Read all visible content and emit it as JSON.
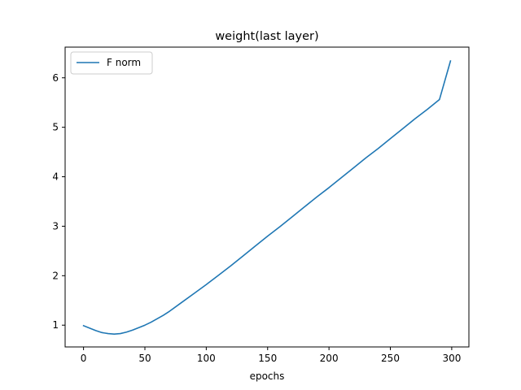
{
  "chart_data": {
    "type": "line",
    "title": "weight(last layer)",
    "xlabel": "epochs",
    "ylabel": "",
    "xlim": [
      -15,
      314
    ],
    "ylim": [
      0.56,
      6.62
    ],
    "xticks": [
      0,
      50,
      100,
      150,
      200,
      250,
      300
    ],
    "yticks": [
      1,
      2,
      3,
      4,
      5,
      6
    ],
    "grid": false,
    "legend": "top-left",
    "series": [
      {
        "name": "F norm",
        "color": "#1f77b4",
        "x": [
          0,
          5,
          10,
          15,
          20,
          25,
          30,
          35,
          40,
          45,
          50,
          55,
          60,
          65,
          70,
          80,
          90,
          100,
          110,
          120,
          130,
          140,
          150,
          160,
          170,
          180,
          190,
          200,
          210,
          220,
          230,
          240,
          250,
          260,
          270,
          280,
          290,
          299
        ],
        "y": [
          0.99,
          0.94,
          0.89,
          0.85,
          0.83,
          0.82,
          0.83,
          0.86,
          0.9,
          0.95,
          1.0,
          1.06,
          1.13,
          1.2,
          1.28,
          1.46,
          1.64,
          1.82,
          2.01,
          2.2,
          2.4,
          2.6,
          2.8,
          2.99,
          3.19,
          3.39,
          3.59,
          3.78,
          3.98,
          4.18,
          4.38,
          4.57,
          4.77,
          4.97,
          5.17,
          5.36,
          5.56,
          6.34
        ]
      }
    ]
  }
}
